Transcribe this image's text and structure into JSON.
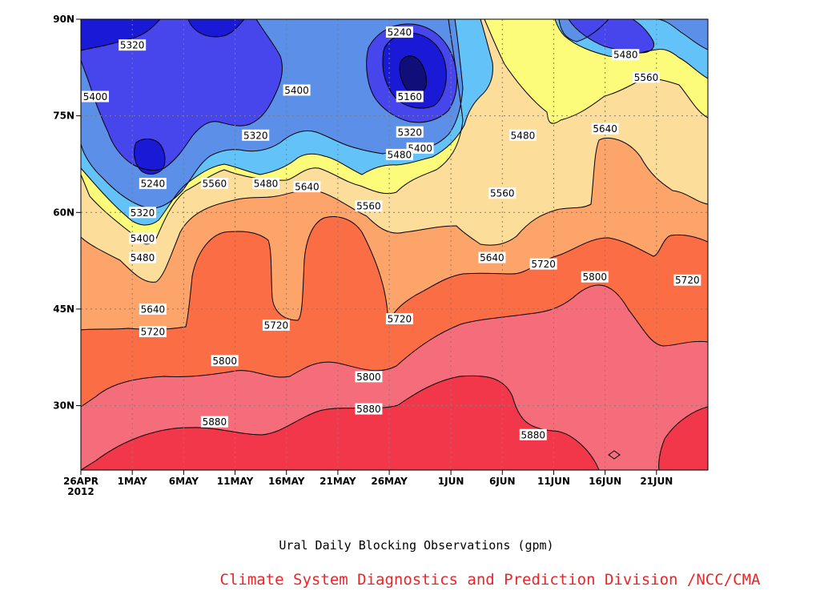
{
  "chart_data": {
    "type": "heatmap",
    "subtitle": "Ural Daily Blocking Observations (gpm)",
    "credit": "Climate System Diagnostics and Prediction Division /NCC/CMA",
    "x_ticks": [
      {
        "label": "26APR",
        "sub": "2012",
        "day": 0
      },
      {
        "label": "1MAY",
        "day": 5
      },
      {
        "label": "6MAY",
        "day": 10
      },
      {
        "label": "11MAY",
        "day": 15
      },
      {
        "label": "16MAY",
        "day": 20
      },
      {
        "label": "21MAY",
        "day": 25
      },
      {
        "label": "26MAY",
        "day": 30
      },
      {
        "label": "1JUN",
        "day": 36
      },
      {
        "label": "6JUN",
        "day": 41
      },
      {
        "label": "11JUN",
        "day": 46
      },
      {
        "label": "16JUN",
        "day": 51
      },
      {
        "label": "21JUN",
        "day": 56
      }
    ],
    "x_range": [
      "26APR2012",
      "26JUN2012"
    ],
    "y_ticks": [
      {
        "label": "30N",
        "lat": 30
      },
      {
        "label": "45N",
        "lat": 45
      },
      {
        "label": "60N",
        "lat": 60
      },
      {
        "label": "75N",
        "lat": 75
      },
      {
        "label": "90N",
        "lat": 90
      }
    ],
    "ylim": [
      20,
      90
    ],
    "grid": true,
    "levels": [
      5160,
      5240,
      5320,
      5400,
      5480,
      5560,
      5640,
      5720,
      5800,
      5880
    ],
    "colors": [
      "#100f7a",
      "#1a1ad6",
      "#4646ec",
      "#5b8fe8",
      "#63c2f8",
      "#fcfc7a",
      "#fddd9a",
      "#fca46a",
      "#fb6e45",
      "#f56c7a",
      "#f2374a"
    ],
    "contour_labels": [
      {
        "text": "5320",
        "day": 5,
        "lat": 86
      },
      {
        "text": "5400",
        "day": 0,
        "lat": 78
      },
      {
        "text": "5240",
        "day": 7,
        "lat": 64.5
      },
      {
        "text": "5320",
        "day": 6,
        "lat": 60
      },
      {
        "text": "5400",
        "day": 6,
        "lat": 56
      },
      {
        "text": "5480",
        "day": 6,
        "lat": 53
      },
      {
        "text": "5560",
        "day": 13,
        "lat": 64.5
      },
      {
        "text": "5480",
        "day": 18,
        "lat": 64.5
      },
      {
        "text": "5320",
        "day": 17,
        "lat": 72
      },
      {
        "text": "5400",
        "day": 21,
        "lat": 79
      },
      {
        "text": "5640",
        "day": 22,
        "lat": 64
      },
      {
        "text": "5560",
        "day": 28,
        "lat": 61
      },
      {
        "text": "5240",
        "day": 31,
        "lat": 88
      },
      {
        "text": "5160",
        "day": 32,
        "lat": 78
      },
      {
        "text": "5320",
        "day": 32,
        "lat": 72.5
      },
      {
        "text": "5400",
        "day": 33,
        "lat": 70
      },
      {
        "text": "5480",
        "day": 31,
        "lat": 69
      },
      {
        "text": "5560",
        "day": 41,
        "lat": 63
      },
      {
        "text": "5480",
        "day": 43,
        "lat": 72
      },
      {
        "text": "5480",
        "day": 53,
        "lat": 84.5
      },
      {
        "text": "5560",
        "day": 55,
        "lat": 81
      },
      {
        "text": "5640",
        "day": 51,
        "lat": 73
      },
      {
        "text": "5640",
        "day": 40,
        "lat": 53
      },
      {
        "text": "5720",
        "day": 45,
        "lat": 52
      },
      {
        "text": "5800",
        "day": 50,
        "lat": 50
      },
      {
        "text": "5720",
        "day": 59,
        "lat": 49.5
      },
      {
        "text": "5640",
        "day": 7,
        "lat": 45
      },
      {
        "text": "5720",
        "day": 7,
        "lat": 41.5
      },
      {
        "text": "5720",
        "day": 19,
        "lat": 42.5
      },
      {
        "text": "5720",
        "day": 31,
        "lat": 43.5
      },
      {
        "text": "5800",
        "day": 14,
        "lat": 37
      },
      {
        "text": "5800",
        "day": 28,
        "lat": 34.5
      },
      {
        "text": "5880",
        "day": 13,
        "lat": 27.5
      },
      {
        "text": "5880",
        "day": 28,
        "lat": 29.5
      },
      {
        "text": "5880",
        "day": 44,
        "lat": 25.5
      }
    ]
  }
}
